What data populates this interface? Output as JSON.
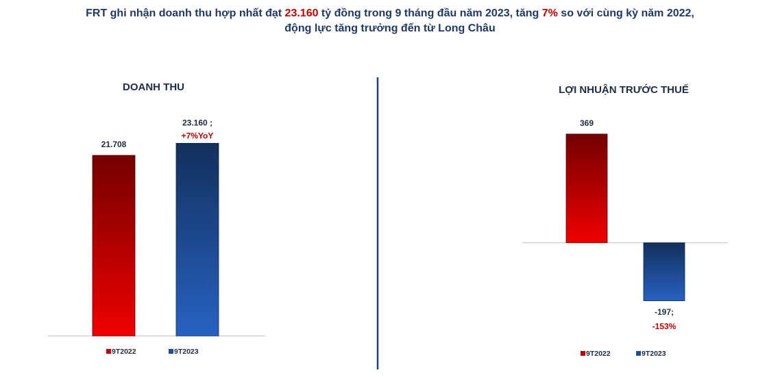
{
  "headline": [
    [
      {
        "text": "FRT ghi nhận doanh thu hợp nhất đạt ",
        "color": "#1f3864"
      },
      {
        "text": "23.160",
        "color": "#c00000"
      },
      {
        "text": " tỷ đồng trong 9 tháng đầu năm 2023, tăng ",
        "color": "#1f3864"
      },
      {
        "text": "7%",
        "color": "#c00000"
      },
      {
        "text": " so với cùng kỳ năm 2022,",
        "color": "#1f3864"
      }
    ],
    [
      {
        "text": "động lực tăng trưởng đến từ Long Châu",
        "color": "#1f3864"
      }
    ]
  ],
  "chart_data": [
    {
      "type": "bar",
      "title": "DOANH THU",
      "ylim": [
        0,
        25000
      ],
      "note_color": "#c00000",
      "series": [
        {
          "name": "9T2022",
          "color": "#c00000",
          "values": [
            21708
          ],
          "value_labels": [
            "21.708"
          ]
        },
        {
          "name": "9T2023",
          "color": "#1f4e9a",
          "values": [
            23160
          ],
          "value_labels": [
            "23.160 ;"
          ],
          "notes": [
            "+7%YoY"
          ]
        }
      ]
    },
    {
      "type": "bar",
      "title": "LỢI NHUẬN TRƯỚC THUẾ",
      "ylim": [
        -300,
        450
      ],
      "note_color": "#c00000",
      "series": [
        {
          "name": "9T2022",
          "color": "#c00000",
          "values": [
            369
          ],
          "value_labels": [
            "369"
          ]
        },
        {
          "name": "9T2023",
          "color": "#1f4e9a",
          "values": [
            -197
          ],
          "value_labels": [
            "-197;"
          ],
          "notes": [
            "-153%"
          ]
        }
      ]
    }
  ]
}
